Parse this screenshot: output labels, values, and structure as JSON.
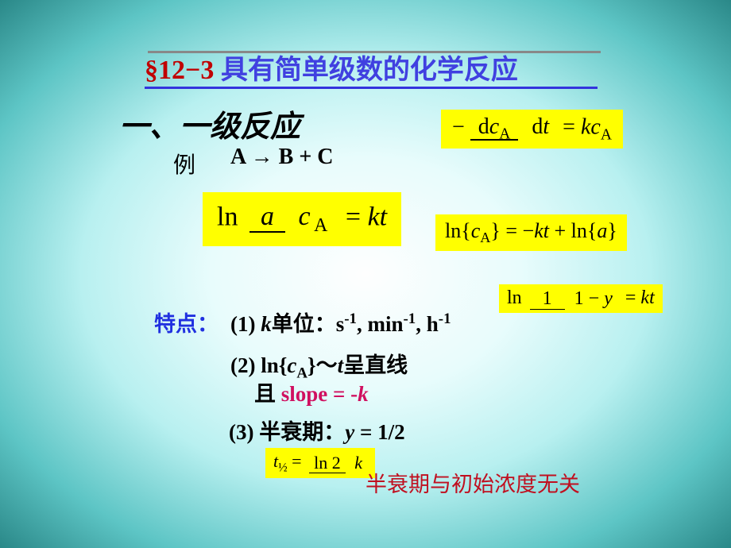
{
  "colors": {
    "title_prefix": "#c00000",
    "title_main": "#4040e0",
    "section_title": "#000000",
    "feature_label": "#2030e0",
    "slope_text": "#d01060",
    "halflife_note": "#c01020",
    "highlight_bg": "#ffff00"
  },
  "title": {
    "prefix": "§12−3",
    "main": " 具有简单级数的化学反应"
  },
  "section": "一、一级反应",
  "example_label": "例",
  "reaction": "A → B  +  C",
  "eq_rate": {
    "minus": "−",
    "num_d": "d",
    "num_c": "c",
    "num_sub": "A",
    "den_d": "d",
    "den_t": "t",
    "eq": " = ",
    "k": "k",
    "c": "c",
    "csub": "A"
  },
  "eq_ln_ratio": {
    "ln": "ln",
    "num": "a",
    "den_c": "c",
    "den_sub": " A",
    "eq": "  =  ",
    "kt": "kt"
  },
  "eq_ln_ca": {
    "text_pre": "ln{",
    "c": "c",
    "sub": "A",
    "text_mid": "} = −",
    "k": "k",
    "t": "t",
    "text_plus": " + ln{",
    "a": "a",
    "text_end": "}"
  },
  "eq_ln_y": {
    "ln": "ln",
    "num": "1",
    "den_pre": "1 − ",
    "den_y": "y",
    "eq": " = ",
    "kt": "kt"
  },
  "features": {
    "label": "特点：",
    "f1_pre": "(1) ",
    "f1_k": "k",
    "f1_mid": "单位：s",
    "f1_sup1": "-1",
    "f1_min": ", min",
    "f1_sup2": "-1",
    "f1_h": ", h",
    "f1_sup3": "-1",
    "f2_pre": "(2) ln{",
    "f2_c": "c",
    "f2_sub": "A",
    "f2_mid": "}～",
    "f2_t": "t",
    "f2_end": "呈直线",
    "f2b_pre": "且 ",
    "f2b_slope": "slope = -",
    "f2b_k": "k",
    "f3_pre": "(3) 半衰期：",
    "f3_y": "y",
    "f3_end": " = 1/2"
  },
  "eq_halflife": {
    "t": "t",
    "sub": "½",
    "eq": " = ",
    "num": "ln 2",
    "den": "k"
  },
  "halflife_note": "半衰期与初始浓度无关"
}
